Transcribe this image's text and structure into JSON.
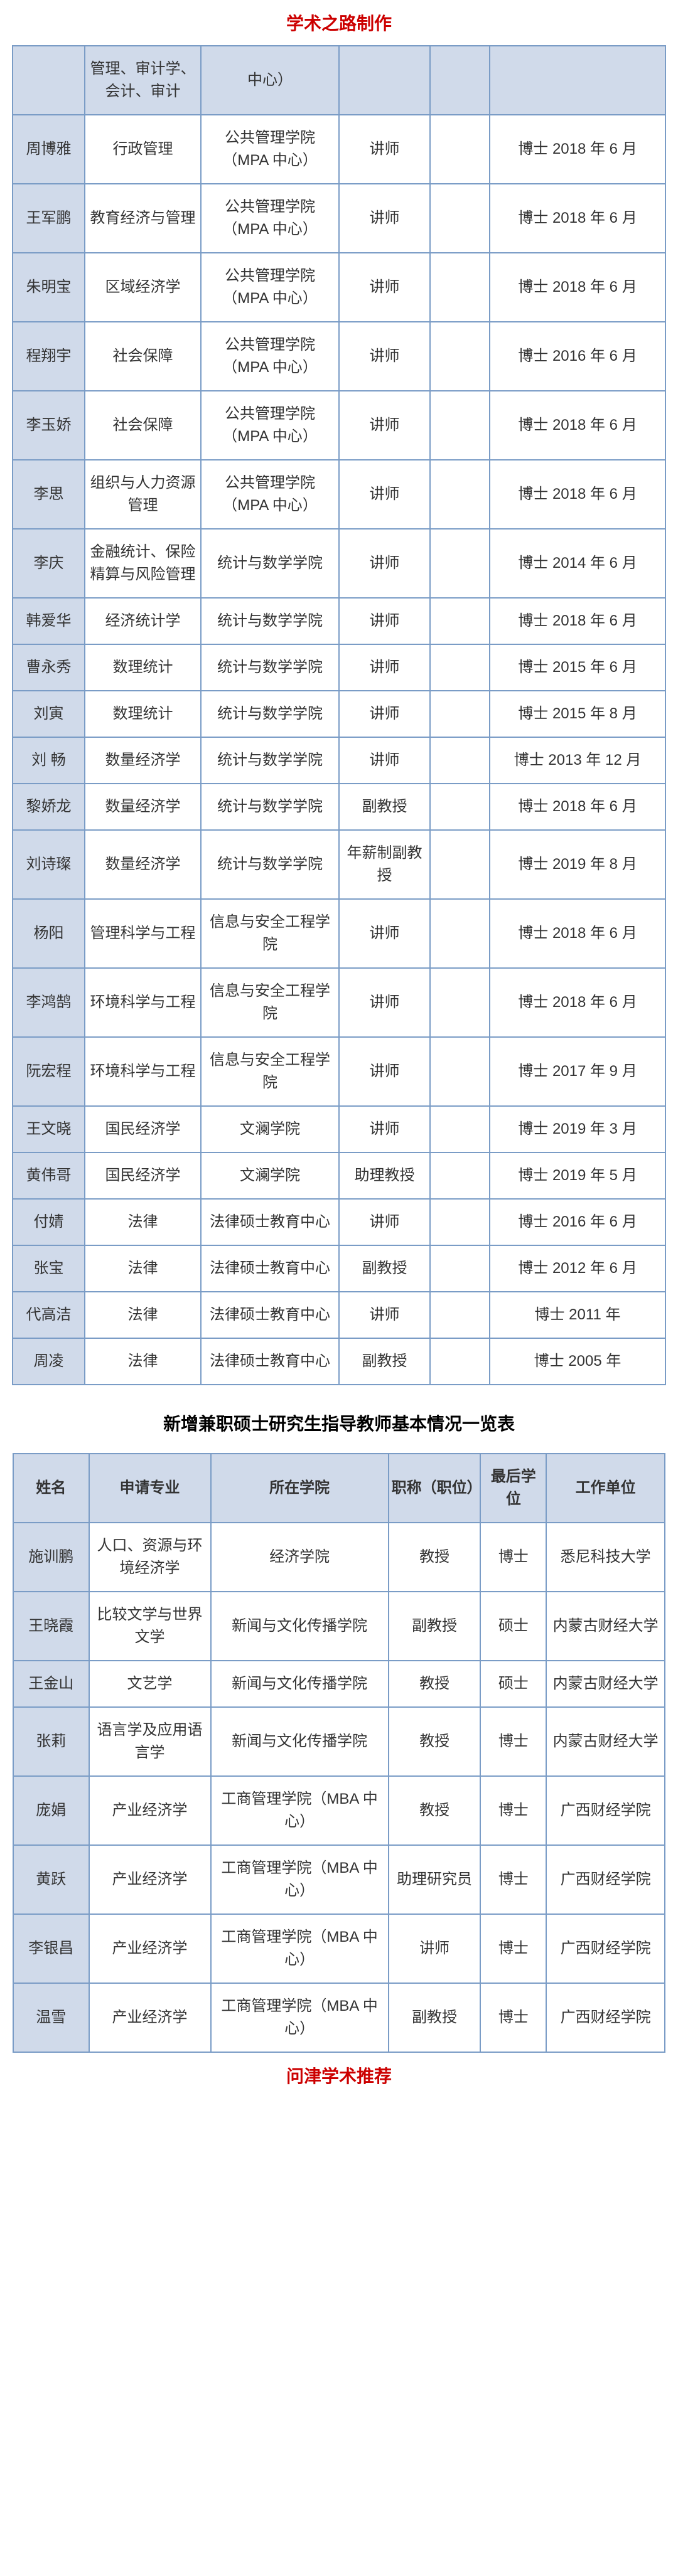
{
  "top_title": "学术之路制作",
  "table1": {
    "header_row": [
      "",
      "管理、审计学、会计、审计",
      "中心）",
      "",
      "",
      ""
    ],
    "rows": [
      [
        "周博雅",
        "行政管理",
        "公共管理学院（MPA 中心）",
        "讲师",
        "",
        "博士 2018 年 6 月"
      ],
      [
        "王军鹏",
        "教育经济与管理",
        "公共管理学院（MPA 中心）",
        "讲师",
        "",
        "博士 2018 年 6 月"
      ],
      [
        "朱明宝",
        "区域经济学",
        "公共管理学院（MPA 中心）",
        "讲师",
        "",
        "博士 2018 年 6 月"
      ],
      [
        "程翔宇",
        "社会保障",
        "公共管理学院（MPA 中心）",
        "讲师",
        "",
        "博士 2016 年 6 月"
      ],
      [
        "李玉娇",
        "社会保障",
        "公共管理学院（MPA 中心）",
        "讲师",
        "",
        "博士 2018 年 6 月"
      ],
      [
        "李思",
        "组织与人力资源管理",
        "公共管理学院（MPA 中心）",
        "讲师",
        "",
        "博士 2018 年 6 月"
      ],
      [
        "李庆",
        "金融统计、保险精算与风险管理",
        "统计与数学学院",
        "讲师",
        "",
        "博士 2014 年 6 月"
      ],
      [
        "韩爱华",
        "经济统计学",
        "统计与数学学院",
        "讲师",
        "",
        "博士 2018 年 6 月"
      ],
      [
        "曹永秀",
        "数理统计",
        "统计与数学学院",
        "讲师",
        "",
        "博士 2015 年 6 月"
      ],
      [
        "刘寅",
        "数理统计",
        "统计与数学学院",
        "讲师",
        "",
        "博士 2015 年 8 月"
      ],
      [
        "刘 畅",
        "数量经济学",
        "统计与数学学院",
        "讲师",
        "",
        "博士 2013 年 12 月"
      ],
      [
        "黎娇龙",
        "数量经济学",
        "统计与数学学院",
        "副教授",
        "",
        "博士 2018 年 6 月"
      ],
      [
        "刘诗璨",
        "数量经济学",
        "统计与数学学院",
        "年薪制副教授",
        "",
        "博士 2019 年 8 月"
      ],
      [
        "杨阳",
        "管理科学与工程",
        "信息与安全工程学院",
        "讲师",
        "",
        "博士 2018 年 6 月"
      ],
      [
        "李鸿鹄",
        "环境科学与工程",
        "信息与安全工程学院",
        "讲师",
        "",
        "博士 2018 年 6 月"
      ],
      [
        "阮宏程",
        "环境科学与工程",
        "信息与安全工程学院",
        "讲师",
        "",
        "博士 2017 年 9 月"
      ],
      [
        "王文晓",
        "国民经济学",
        "文澜学院",
        "讲师",
        "",
        "博士 2019 年 3 月"
      ],
      [
        "黄伟哥",
        "国民经济学",
        "文澜学院",
        "助理教授",
        "",
        "博士  2019 年 5 月"
      ],
      [
        "付婧",
        "法律",
        "法律硕士教育中心",
        "讲师",
        "",
        "博士 2016 年 6 月"
      ],
      [
        "张宝",
        "法律",
        "法律硕士教育中心",
        "副教授",
        "",
        "博士 2012 年 6 月"
      ],
      [
        "代高洁",
        "法律",
        "法律硕士教育中心",
        "讲师",
        "",
        "博士 2011 年"
      ],
      [
        "周凌",
        "法律",
        "法律硕士教育中心",
        "副教授",
        "",
        "博士 2005 年"
      ]
    ]
  },
  "mid_title": "新增兼职硕士研究生指导教师基本情况一览表",
  "table2": {
    "headers": [
      "姓名",
      "申请专业",
      "所在学院",
      "职称（职位）",
      "最后学位",
      "工作单位"
    ],
    "rows": [
      [
        "施训鹏",
        "人口、资源与环境经济学",
        "经济学院",
        "教授",
        "博士",
        "悉尼科技大学"
      ],
      [
        "王晓霞",
        "比较文学与世界文学",
        "新闻与文化传播学院",
        "副教授",
        "硕士",
        "内蒙古财经大学"
      ],
      [
        "王金山",
        "文艺学",
        "新闻与文化传播学院",
        "教授",
        "硕士",
        "内蒙古财经大学"
      ],
      [
        "张莉",
        "语言学及应用语言学",
        "新闻与文化传播学院",
        "教授",
        "博士",
        "内蒙古财经大学"
      ],
      [
        "庞娟",
        "产业经济学",
        "工商管理学院（MBA 中心）",
        "教授",
        "博士",
        "广西财经学院"
      ],
      [
        "黄跃",
        "产业经济学",
        "工商管理学院（MBA 中心）",
        "助理研究员",
        "博士",
        "广西财经学院"
      ],
      [
        "李银昌",
        "产业经济学",
        "工商管理学院（MBA 中心）",
        "讲师",
        "博士",
        "广西财经学院"
      ],
      [
        "温雪",
        "产业经济学",
        "工商管理学院（MBA 中心）",
        "副教授",
        "博士",
        "广西财经学院"
      ]
    ]
  },
  "bottom_title": "问津学术推荐"
}
